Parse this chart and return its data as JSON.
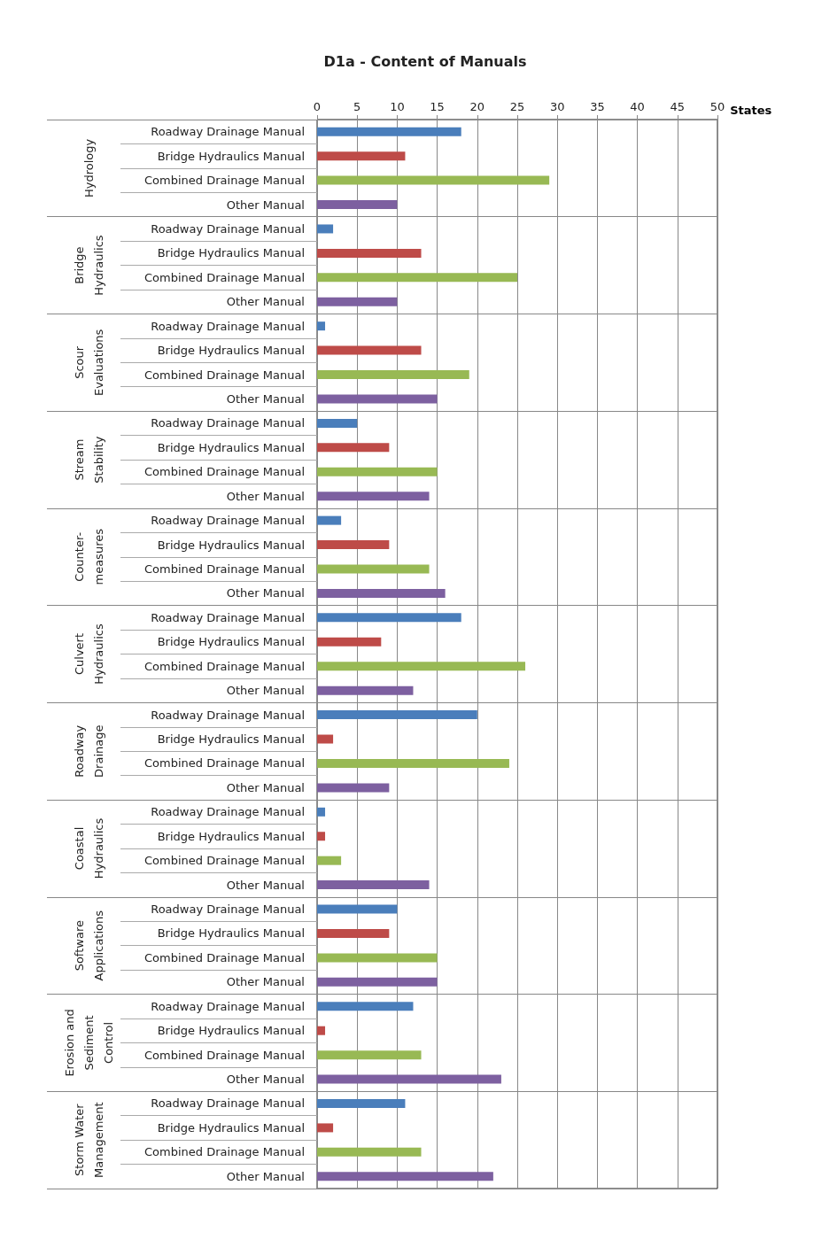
{
  "chart_data": {
    "type": "bar",
    "orientation": "horizontal",
    "title": "D1a - Content of Manuals",
    "xlabel": "States",
    "categories": [
      "Roadway Drainage Manual",
      "Bridge Hydraulics Manual",
      "Combined Drainage Manual",
      "Other Manual",
      "Roadway Drainage Manual",
      "Bridge Hydraulics Manual",
      "Combined Drainage Manual",
      "Other Manual",
      "Roadway Drainage Manual",
      "Bridge Hydraulics Manual",
      "Combined Drainage Manual",
      "Other Manual",
      "Roadway Drainage Manual",
      "Bridge Hydraulics Manual",
      "Combined Drainage Manual",
      "Other Manual",
      "Roadway Drainage Manual",
      "Bridge Hydraulics Manual",
      "Combined Drainage Manual",
      "Other Manual",
      "Roadway Drainage Manual",
      "Bridge Hydraulics Manual",
      "Combined Drainage Manual",
      "Other Manual",
      "Roadway Drainage Manual",
      "Bridge Hydraulics Manual",
      "Combined Drainage Manual",
      "Other Manual",
      "Roadway Drainage Manual",
      "Bridge Hydraulics Manual",
      "Combined Drainage Manual",
      "Other Manual",
      "Roadway Drainage Manual",
      "Bridge Hydraulics Manual",
      "Combined Drainage Manual",
      "Other Manual",
      "Roadway Drainage Manual",
      "Bridge Hydraulics Manual",
      "Combined Drainage Manual",
      "Other Manual",
      "Roadway Drainage Manual",
      "Bridge Hydraulics Manual",
      "Combined Drainage Manual",
      "Other Manual"
    ],
    "values": [
      18,
      11,
      29,
      10,
      2,
      13,
      25,
      10,
      1,
      13,
      19,
      15,
      5,
      9,
      15,
      14,
      3,
      9,
      14,
      16,
      18,
      8,
      26,
      12,
      20,
      2,
      24,
      9,
      1,
      1,
      3,
      14,
      10,
      9,
      15,
      15,
      12,
      1,
      13,
      23,
      11,
      2,
      13,
      22
    ],
    "colors": [
      "#4a7ebb",
      "#be4b48",
      "#98b954",
      "#7d60a0",
      "#4a7ebb",
      "#be4b48",
      "#98b954",
      "#7d60a0",
      "#4a7ebb",
      "#be4b48",
      "#98b954",
      "#7d60a0",
      "#4a7ebb",
      "#be4b48",
      "#98b954",
      "#7d60a0",
      "#4a7ebb",
      "#be4b48",
      "#98b954",
      "#7d60a0",
      "#4a7ebb",
      "#be4b48",
      "#98b954",
      "#7d60a0",
      "#4a7ebb",
      "#be4b48",
      "#98b954",
      "#7d60a0",
      "#4a7ebb",
      "#be4b48",
      "#98b954",
      "#7d60a0",
      "#4a7ebb",
      "#be4b48",
      "#98b954",
      "#7d60a0",
      "#4a7ebb",
      "#be4b48",
      "#98b954",
      "#7d60a0",
      "#4a7ebb",
      "#be4b48",
      "#98b954",
      "#7d60a0"
    ],
    "annotations": [
      "Hydrology",
      "Bridge Hydraulics",
      "Scour Evaluations",
      "Stream Stability",
      "Counter-measures",
      "Culvert Hydraulics",
      "Roadway Drainage",
      "Coastal Hydraulics",
      "Software Applications",
      "Erosion and Sediment Control",
      "Storm Water Management"
    ],
    "xlim": [
      0,
      50
    ],
    "xticks": [
      0,
      5,
      10,
      15,
      20,
      25,
      30,
      35,
      40,
      45,
      50
    ],
    "grid": true
  }
}
